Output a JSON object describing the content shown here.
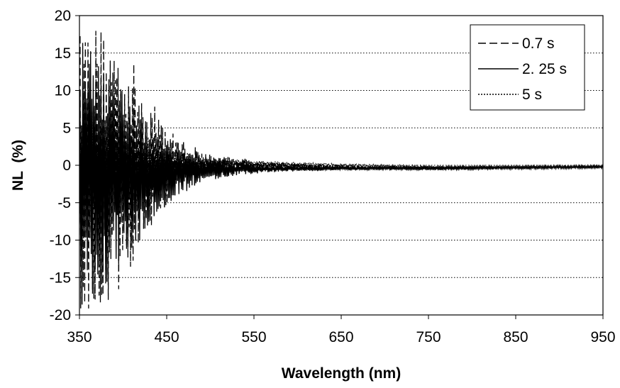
{
  "chart_data": {
    "type": "line",
    "title": "",
    "xlabel": "Wavelength (nm)",
    "ylabel": "NL  (%)",
    "xlim": [
      350,
      950
    ],
    "ylim": [
      -20,
      20
    ],
    "xticks": [
      350,
      450,
      550,
      650,
      750,
      850,
      950
    ],
    "yticks": [
      -20,
      -15,
      -10,
      -5,
      0,
      5,
      10,
      15,
      20
    ],
    "grid": "horizontal dotted",
    "legend_position": "top-right",
    "series": [
      {
        "name": "0.7 s",
        "line_style": "dashed",
        "color": "#000000",
        "amplitude_envelope": [
          [
            350,
            20
          ],
          [
            400,
            17
          ],
          [
            430,
            9
          ],
          [
            460,
            4
          ],
          [
            500,
            1.5
          ],
          [
            560,
            0.6
          ],
          [
            650,
            0.3
          ],
          [
            950,
            0.2
          ]
        ],
        "baseline": [
          [
            350,
            0
          ],
          [
            450,
            0
          ],
          [
            550,
            0
          ],
          [
            650,
            -0.3
          ],
          [
            750,
            -0.4
          ],
          [
            850,
            -0.3
          ],
          [
            950,
            -0.2
          ]
        ]
      },
      {
        "name": "2. 25 s",
        "line_style": "solid",
        "color": "#000000",
        "amplitude_envelope": [
          [
            350,
            18
          ],
          [
            400,
            12
          ],
          [
            430,
            6
          ],
          [
            460,
            3.5
          ],
          [
            490,
            1.5
          ],
          [
            560,
            0.5
          ],
          [
            650,
            0.3
          ],
          [
            950,
            0.2
          ]
        ],
        "baseline": [
          [
            350,
            -1
          ],
          [
            420,
            -2
          ],
          [
            450,
            -1
          ],
          [
            500,
            -0.6
          ],
          [
            550,
            -0.5
          ],
          [
            650,
            -0.4
          ],
          [
            750,
            -0.4
          ],
          [
            850,
            -0.3
          ],
          [
            950,
            -0.2
          ]
        ]
      },
      {
        "name": "5 s",
        "line_style": "dotted",
        "color": "#000000",
        "amplitude_envelope": [
          [
            350,
            8
          ],
          [
            400,
            5
          ],
          [
            450,
            2
          ],
          [
            500,
            0.8
          ],
          [
            560,
            0.4
          ],
          [
            650,
            0.2
          ],
          [
            950,
            0.1
          ]
        ],
        "baseline": [
          [
            350,
            1
          ],
          [
            450,
            0.5
          ],
          [
            550,
            0.2
          ],
          [
            650,
            0
          ],
          [
            750,
            -0.2
          ],
          [
            850,
            -0.2
          ],
          [
            950,
            -0.2
          ]
        ]
      }
    ]
  }
}
